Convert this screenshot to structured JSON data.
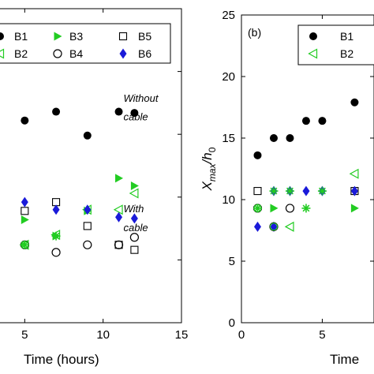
{
  "chart_data": [
    {
      "type": "scatter",
      "panel_label": "",
      "xlabel": "Time (hours)",
      "ylabel": "",
      "xlim": [
        0,
        15
      ],
      "ylim": [
        0,
        25
      ],
      "xticks": [
        5,
        10,
        15
      ],
      "xtick_labels": [
        "5",
        "10",
        "15"
      ],
      "legend_position": "top",
      "legend": [
        "B1",
        "B3",
        "B5",
        "B2",
        "B4",
        "B6"
      ],
      "annotations": [
        {
          "text": "Without",
          "x": 11.3,
          "y": 17.6
        },
        {
          "text": "cable",
          "x": 11.3,
          "y": 16.1
        },
        {
          "text": "With",
          "x": 11.3,
          "y": 8.8
        },
        {
          "text": "cable",
          "x": 11.3,
          "y": 7.3
        }
      ],
      "series": [
        {
          "name": "B1",
          "marker": "filled-circle",
          "color": "#000000",
          "x": [
            5,
            7,
            9,
            11,
            12
          ],
          "y": [
            16.1,
            16.8,
            14.9,
            16.8,
            16.7
          ]
        },
        {
          "name": "B3",
          "marker": "filled-triangle-right",
          "color": "#22cc22",
          "x": [
            5,
            7,
            9,
            11,
            12
          ],
          "y": [
            8.2,
            6.9,
            8.9,
            11.5,
            10.9
          ]
        },
        {
          "name": "B5",
          "marker": "open-square",
          "color": "#000000",
          "x": [
            5,
            7,
            9,
            11,
            12
          ],
          "y": [
            8.9,
            9.6,
            7.7,
            6.2,
            5.8
          ]
        },
        {
          "name": "B2",
          "marker": "open-triangle-left",
          "color": "#22cc22",
          "x": [
            5,
            7,
            9,
            11,
            12
          ],
          "y": [
            6.2,
            7.0,
            9.0,
            9.0,
            10.3
          ]
        },
        {
          "name": "B4",
          "marker": "open-circle",
          "color": "#000000",
          "x": [
            5,
            7,
            9,
            11,
            12
          ],
          "y": [
            6.2,
            5.6,
            6.2,
            6.2,
            6.8
          ]
        },
        {
          "name": "B6",
          "marker": "filled-diamond",
          "color": "#1a1ad9",
          "x": [
            5,
            7,
            9,
            11,
            12
          ],
          "y": [
            9.6,
            9.0,
            9.0,
            8.4,
            8.3
          ]
        },
        {
          "name": "",
          "marker": "green-asterisk",
          "color": "#22cc22",
          "x": [
            5,
            7
          ],
          "y": [
            6.2,
            6.9
          ]
        },
        {
          "name": "",
          "marker": "green-open-circle",
          "color": "#22cc22",
          "x": [
            5
          ],
          "y": [
            6.2
          ]
        }
      ]
    },
    {
      "type": "scatter",
      "panel_label": "(b)",
      "xlabel": "Time",
      "ylabel": "X_max/h_0",
      "xlim": [
        0,
        8.2
      ],
      "ylim": [
        0,
        25
      ],
      "xticks": [
        0,
        5
      ],
      "xtick_labels": [
        "0",
        "5"
      ],
      "yticks": [
        0,
        5,
        10,
        15,
        20,
        25
      ],
      "ytick_labels": [
        "0",
        "5",
        "10",
        "15",
        "20",
        "25"
      ],
      "legend_position": "top-right",
      "legend": [
        "B1",
        "B2"
      ],
      "series": [
        {
          "name": "B1",
          "marker": "filled-circle",
          "color": "#000000",
          "x": [
            1,
            2,
            3,
            4,
            5,
            7
          ],
          "y": [
            13.6,
            15.0,
            15.0,
            16.4,
            16.4,
            17.9
          ]
        },
        {
          "name": "B2",
          "marker": "open-triangle-left",
          "color": "#22cc22",
          "x": [
            3,
            7
          ],
          "y": [
            7.8,
            12.1
          ]
        },
        {
          "name": "",
          "marker": "open-square",
          "color": "#000000",
          "x": [
            1,
            7
          ],
          "y": [
            10.7,
            10.7
          ]
        },
        {
          "name": "",
          "marker": "filled-diamond",
          "color": "#1a1ad9",
          "x": [
            1,
            2,
            2,
            3,
            4,
            5,
            7
          ],
          "y": [
            7.8,
            7.8,
            10.7,
            10.7,
            10.7,
            10.7,
            10.7
          ]
        },
        {
          "name": "",
          "marker": "filled-triangle-right",
          "color": "#22cc22",
          "x": [
            2,
            7
          ],
          "y": [
            9.3,
            9.3
          ]
        },
        {
          "name": "",
          "marker": "open-circle",
          "color": "#000000",
          "x": [
            1,
            2,
            3
          ],
          "y": [
            9.3,
            7.8,
            9.3
          ]
        },
        {
          "name": "",
          "marker": "green-asterisk",
          "color": "#22cc22",
          "x": [
            1,
            2,
            3,
            4,
            5
          ],
          "y": [
            9.3,
            10.7,
            10.7,
            9.3,
            10.7
          ]
        },
        {
          "name": "",
          "marker": "green-open-circle",
          "color": "#22cc22",
          "x": [
            1,
            2
          ],
          "y": [
            9.3,
            7.8
          ]
        }
      ]
    }
  ]
}
